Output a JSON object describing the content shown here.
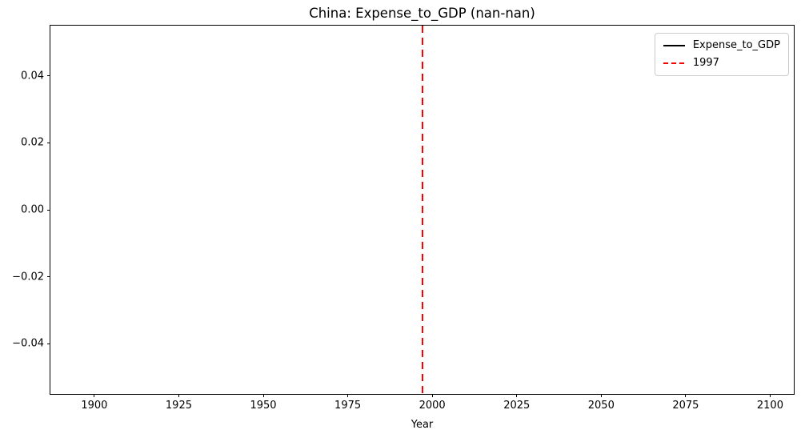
{
  "figure": {
    "background": "#ffffff"
  },
  "chart_data": {
    "type": "line",
    "title": "China: Expense_to_GDP (nan-nan)",
    "xlabel": "Year",
    "ylabel": "",
    "grid": false,
    "xlim": [
      1887,
      2107
    ],
    "ylim": [
      -0.055,
      0.055
    ],
    "xticks": [
      {
        "value": 1900,
        "label": "1900"
      },
      {
        "value": 1925,
        "label": "1925"
      },
      {
        "value": 1950,
        "label": "1950"
      },
      {
        "value": 1975,
        "label": "1975"
      },
      {
        "value": 2000,
        "label": "2000"
      },
      {
        "value": 2025,
        "label": "2025"
      },
      {
        "value": 2050,
        "label": "2050"
      },
      {
        "value": 2075,
        "label": "2075"
      },
      {
        "value": 2100,
        "label": "2100"
      }
    ],
    "yticks": [
      {
        "value": 0.04,
        "label": "0.04"
      },
      {
        "value": 0.02,
        "label": "0.02"
      },
      {
        "value": 0.0,
        "label": "0.00"
      },
      {
        "value": -0.02,
        "label": "−0.02"
      },
      {
        "value": -0.04,
        "label": "−0.04"
      }
    ],
    "series": [
      {
        "name": "Expense_to_GDP",
        "color": "#000000",
        "linestyle": "solid",
        "x": [],
        "y": []
      }
    ],
    "annotations": [
      {
        "type": "vline",
        "x": 1997,
        "color": "#ff0000",
        "linestyle": "dashed"
      }
    ],
    "legend": {
      "position": "upper right",
      "entries": [
        {
          "label": "Expense_to_GDP",
          "color": "#000000",
          "linestyle": "solid"
        },
        {
          "label": "1997",
          "color": "#ff0000",
          "linestyle": "dashed"
        }
      ]
    }
  }
}
